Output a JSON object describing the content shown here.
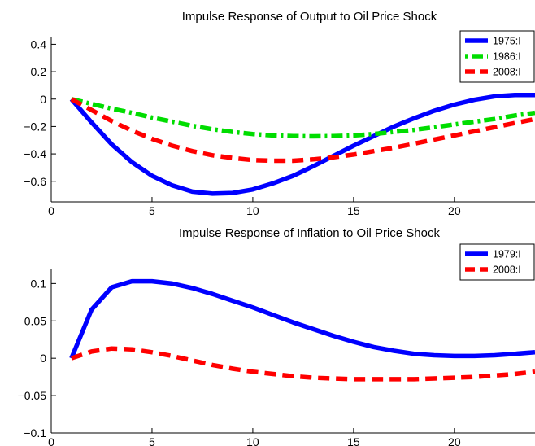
{
  "chart_data": [
    {
      "type": "line",
      "title": "Impulse Response of Output to Oil Price Shock",
      "xlabel": "",
      "ylabel": "",
      "xlim": [
        0,
        24
      ],
      "ylim": [
        -0.75,
        0.45
      ],
      "xticks": [
        0,
        5,
        10,
        15,
        20
      ],
      "yticks": [
        0.4,
        0.2,
        0,
        -0.2,
        -0.4,
        -0.6
      ],
      "xtick_labels": [
        "0",
        "5",
        "10",
        "15",
        "20"
      ],
      "ytick_labels": [
        "0.4",
        "0.2",
        "0",
        "−0.2",
        "−0.4",
        "−0.6"
      ],
      "grid": false,
      "legend_position": "top-right",
      "x": [
        1,
        2,
        3,
        4,
        5,
        6,
        7,
        8,
        9,
        10,
        11,
        12,
        13,
        14,
        15,
        16,
        17,
        18,
        19,
        20,
        21,
        22,
        23,
        24
      ],
      "series": [
        {
          "name": "1975:I",
          "color": "#0000ff",
          "style": "solid",
          "values": [
            0,
            -0.17,
            -0.33,
            -0.46,
            -0.56,
            -0.63,
            -0.675,
            -0.69,
            -0.685,
            -0.66,
            -0.615,
            -0.56,
            -0.49,
            -0.415,
            -0.34,
            -0.27,
            -0.2,
            -0.14,
            -0.085,
            -0.04,
            -0.005,
            0.02,
            0.03,
            0.03
          ]
        },
        {
          "name": "1986:I",
          "color": "#00dd00",
          "style": "dashdot",
          "values": [
            0,
            -0.035,
            -0.07,
            -0.1,
            -0.135,
            -0.165,
            -0.195,
            -0.22,
            -0.24,
            -0.255,
            -0.265,
            -0.27,
            -0.272,
            -0.27,
            -0.265,
            -0.255,
            -0.24,
            -0.225,
            -0.205,
            -0.185,
            -0.165,
            -0.145,
            -0.12,
            -0.1
          ]
        },
        {
          "name": "2008:I",
          "color": "#ff0000",
          "style": "dashed",
          "values": [
            0,
            -0.08,
            -0.16,
            -0.23,
            -0.29,
            -0.34,
            -0.38,
            -0.41,
            -0.43,
            -0.445,
            -0.45,
            -0.45,
            -0.44,
            -0.425,
            -0.405,
            -0.38,
            -0.355,
            -0.325,
            -0.295,
            -0.265,
            -0.235,
            -0.205,
            -0.175,
            -0.145
          ]
        }
      ]
    },
    {
      "type": "line",
      "title": "Impulse Response of Inflation to Oil Price Shock",
      "xlabel": "",
      "ylabel": "",
      "xlim": [
        0,
        24
      ],
      "ylim": [
        -0.1,
        0.12
      ],
      "xticks": [
        0,
        5,
        10,
        15,
        20
      ],
      "yticks": [
        0.1,
        0.05,
        0,
        -0.05,
        -0.1
      ],
      "xtick_labels": [
        "0",
        "5",
        "10",
        "15",
        "20"
      ],
      "ytick_labels": [
        "0.1",
        "0.05",
        "0",
        "−0.05",
        "−0.1"
      ],
      "grid": false,
      "legend_position": "top-right",
      "x": [
        1,
        2,
        3,
        4,
        5,
        6,
        7,
        8,
        9,
        10,
        11,
        12,
        13,
        14,
        15,
        16,
        17,
        18,
        19,
        20,
        21,
        22,
        23,
        24
      ],
      "series": [
        {
          "name": "1979:I",
          "color": "#0000ff",
          "style": "solid",
          "values": [
            0,
            0.065,
            0.095,
            0.103,
            0.103,
            0.1,
            0.094,
            0.086,
            0.077,
            0.068,
            0.058,
            0.048,
            0.039,
            0.03,
            0.022,
            0.015,
            0.01,
            0.006,
            0.004,
            0.003,
            0.003,
            0.004,
            0.006,
            0.008
          ]
        },
        {
          "name": "2008:I",
          "color": "#ff0000",
          "style": "dashed",
          "values": [
            0,
            0.009,
            0.013,
            0.012,
            0.008,
            0.003,
            -0.003,
            -0.009,
            -0.014,
            -0.018,
            -0.021,
            -0.024,
            -0.026,
            -0.027,
            -0.028,
            -0.028,
            -0.028,
            -0.028,
            -0.027,
            -0.026,
            -0.025,
            -0.023,
            -0.021,
            -0.018
          ]
        }
      ]
    }
  ]
}
